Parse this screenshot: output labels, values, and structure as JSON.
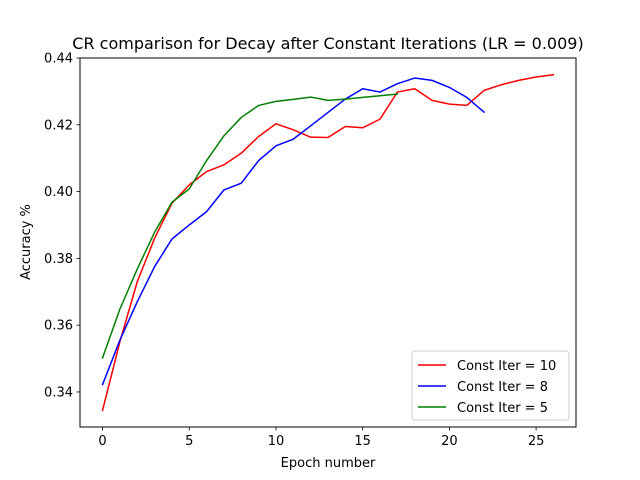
{
  "chart_data": {
    "type": "line",
    "title": "CR comparison for Decay after Constant Iterations (LR = 0.009)",
    "xlabel": "Epoch number",
    "ylabel": "Accuracy %",
    "xlim": [
      -1.3,
      27.3
    ],
    "ylim": [
      0.3295,
      0.44
    ],
    "xticks": [
      0,
      5,
      10,
      15,
      20,
      25
    ],
    "yticks": [
      0.34,
      0.36,
      0.38,
      0.4,
      0.42,
      0.44
    ],
    "ytick_labels": [
      "0.34",
      "0.36",
      "0.38",
      "0.40",
      "0.42",
      "0.44"
    ],
    "grid": false,
    "legend_position": "lower-right",
    "series": [
      {
        "name": "Const Iter = 10",
        "color": "#ff0000",
        "x": [
          0,
          1,
          2,
          3,
          4,
          5,
          6,
          7,
          8,
          9,
          10,
          11,
          12,
          13,
          14,
          15,
          16,
          17,
          18,
          19,
          20,
          21,
          22,
          23,
          24,
          25,
          26
        ],
        "values": [
          0.3345,
          0.355,
          0.373,
          0.386,
          0.3965,
          0.402,
          0.406,
          0.408,
          0.4115,
          0.4165,
          0.4203,
          0.4185,
          0.4163,
          0.4162,
          0.4195,
          0.4191,
          0.4217,
          0.4298,
          0.4308,
          0.4273,
          0.4262,
          0.4258,
          0.4303,
          0.432,
          0.4333,
          0.4343,
          0.435
        ]
      },
      {
        "name": "Const Iter = 8",
        "color": "#0000ff",
        "x": [
          0,
          1,
          2,
          3,
          4,
          5,
          6,
          7,
          8,
          9,
          10,
          11,
          12,
          13,
          14,
          15,
          16,
          17,
          18,
          19,
          20,
          21,
          22
        ],
        "values": [
          0.3422,
          0.3555,
          0.367,
          0.3775,
          0.3858,
          0.39,
          0.394,
          0.4005,
          0.4025,
          0.4093,
          0.4137,
          0.4157,
          0.4197,
          0.4237,
          0.4277,
          0.4308,
          0.4298,
          0.4323,
          0.434,
          0.4333,
          0.4312,
          0.4282,
          0.4238
        ]
      },
      {
        "name": "Const Iter = 5",
        "color": "#008000",
        "x": [
          0,
          1,
          2,
          3,
          4,
          5,
          6,
          7,
          8,
          9,
          10,
          11,
          12,
          13,
          14,
          15,
          16,
          17
        ],
        "values": [
          0.3502,
          0.3648,
          0.3768,
          0.3878,
          0.3968,
          0.4008,
          0.4093,
          0.4167,
          0.4222,
          0.4258,
          0.427,
          0.4276,
          0.4283,
          0.4273,
          0.4277,
          0.4282,
          0.4287,
          0.4292
        ]
      }
    ]
  }
}
